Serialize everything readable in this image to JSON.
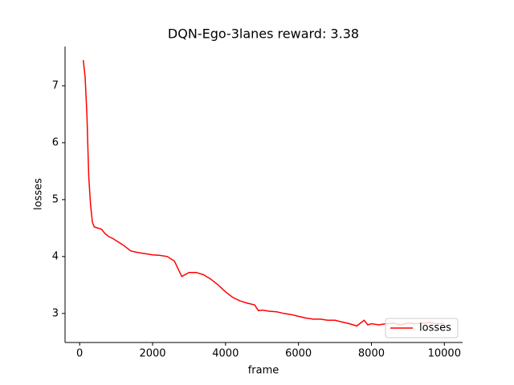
{
  "chart_data": {
    "type": "line",
    "title": "DQN-Ego-3lanes reward: 3.38",
    "xlabel": "frame",
    "ylabel": "losses",
    "x": [
      100,
      150,
      200,
      250,
      300,
      350,
      400,
      500,
      600,
      700,
      800,
      900,
      1000,
      1200,
      1400,
      1600,
      1800,
      2000,
      2200,
      2400,
      2600,
      2800,
      3000,
      3200,
      3400,
      3600,
      3800,
      4000,
      4200,
      4400,
      4600,
      4800,
      4900,
      5000,
      5200,
      5400,
      5600,
      5800,
      6000,
      6200,
      6400,
      6600,
      6800,
      7000,
      7200,
      7400,
      7600,
      7800,
      7900,
      8000,
      8200,
      8400,
      8600,
      8800,
      9000,
      9200,
      9400,
      9600,
      9800,
      10000
    ],
    "series": [
      {
        "name": "losses",
        "color": "#ff0000",
        "values": [
          7.45,
          7.15,
          6.5,
          5.4,
          4.9,
          4.6,
          4.52,
          4.5,
          4.48,
          4.4,
          4.35,
          4.32,
          4.28,
          4.2,
          4.1,
          4.07,
          4.05,
          4.03,
          4.02,
          4.0,
          3.92,
          3.65,
          3.72,
          3.72,
          3.68,
          3.6,
          3.5,
          3.38,
          3.28,
          3.22,
          3.18,
          3.15,
          3.05,
          3.06,
          3.04,
          3.03,
          3.0,
          2.98,
          2.95,
          2.92,
          2.9,
          2.9,
          2.88,
          2.88,
          2.85,
          2.82,
          2.78,
          2.88,
          2.8,
          2.82,
          2.8,
          2.82,
          2.83,
          2.8,
          2.83,
          2.82,
          2.83,
          2.84,
          2.82,
          2.83
        ]
      }
    ],
    "xlim": [
      -400,
      10500
    ],
    "ylim": [
      2.49,
      7.69
    ],
    "xticks": [
      0,
      2000,
      4000,
      6000,
      8000,
      10000
    ],
    "yticks": [
      3,
      4,
      5,
      6,
      7
    ],
    "legend": "lower right"
  }
}
